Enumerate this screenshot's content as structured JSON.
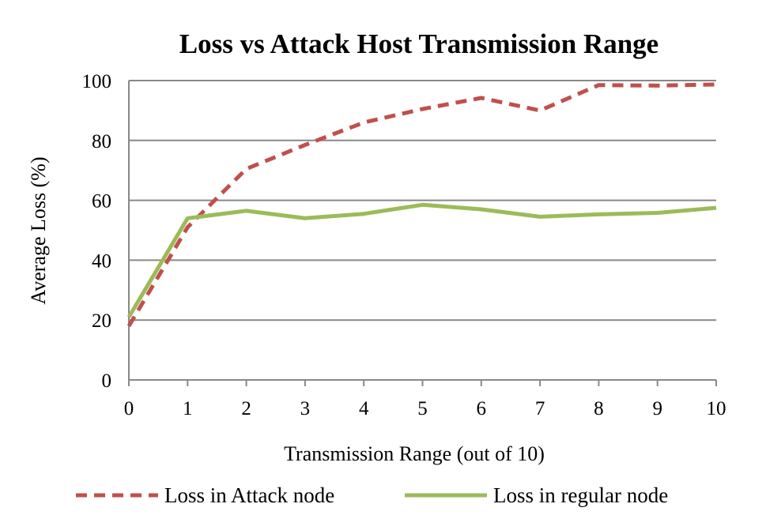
{
  "chart_data": {
    "type": "line",
    "title": "Loss vs Attack Host Transmission Range",
    "xlabel": "Transmission Range (out of 10)",
    "ylabel": "Average Loss (%)",
    "x": [
      0,
      1,
      2,
      3,
      4,
      5,
      6,
      7,
      8,
      9,
      10
    ],
    "xlim": [
      0,
      10
    ],
    "ylim": [
      0,
      100
    ],
    "y_ticks": [
      0,
      20,
      40,
      60,
      80,
      100
    ],
    "x_ticks": [
      0,
      1,
      2,
      3,
      4,
      5,
      6,
      7,
      8,
      9,
      10
    ],
    "grid": "horizontal",
    "legend_position": "bottom",
    "series": [
      {
        "name": "Loss in Attack node",
        "values": [
          18,
          51,
          70.5,
          78.5,
          86,
          90.5,
          94.2,
          90,
          98.5,
          98.3,
          98.7
        ],
        "color": "#C0504D",
        "style": "dashed"
      },
      {
        "name": "Loss in regular node",
        "values": [
          21,
          54,
          56.5,
          54,
          55.5,
          58.5,
          57,
          54.5,
          55.3,
          55.8,
          57.5
        ],
        "color": "#9BBB59",
        "style": "solid"
      }
    ]
  }
}
